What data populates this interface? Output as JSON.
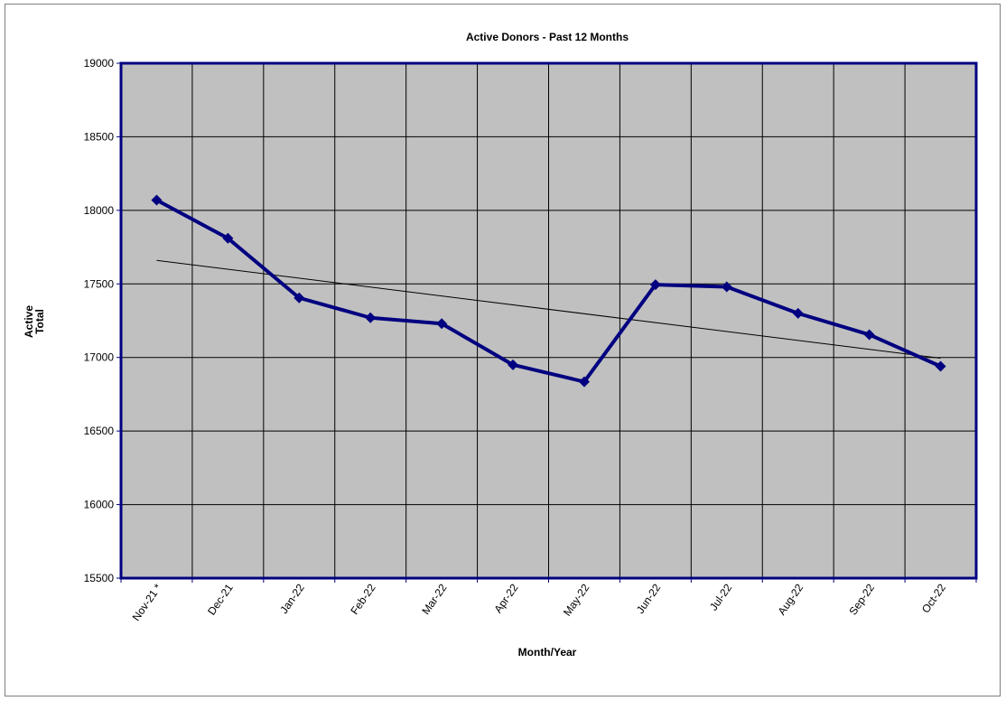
{
  "chart_data": {
    "type": "line",
    "title": "Active Donors - Past 12 Months",
    "xlabel": "Month/Year",
    "ylabel_lines": [
      "Active",
      "Total"
    ],
    "categories": [
      "Nov-21 *",
      "Dec-21",
      "Jan-22",
      "Feb-22",
      "Mar-22",
      "Apr-22",
      "May-22",
      "Jun-22",
      "Jul-22",
      "Aug-22",
      "Sep-22",
      "Oct-22"
    ],
    "series": [
      {
        "values": [
          18070,
          17810,
          17405,
          17270,
          17230,
          16950,
          16835,
          17495,
          17480,
          17300,
          17155,
          16940
        ]
      }
    ],
    "trendline": {
      "type": "linear",
      "start": 17660,
      "end": 16995
    },
    "ylim": [
      15500,
      19000
    ],
    "yticks": [
      15500,
      16000,
      16500,
      17000,
      17500,
      18000,
      18500,
      19000
    ],
    "grid": true,
    "legend": "none",
    "colors": {
      "series": "#000080",
      "plot_background": "#c0c0c0",
      "plot_border": "#000080",
      "grid": "#000000",
      "trendline": "#000000"
    }
  }
}
